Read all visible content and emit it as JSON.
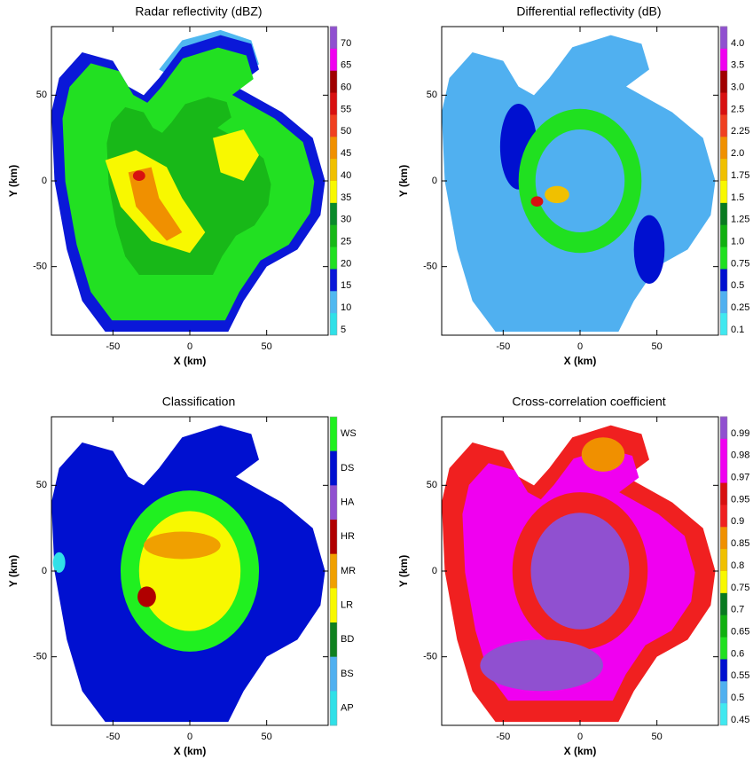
{
  "chart_data": [
    {
      "type": "heatmap",
      "title": "Radar reflectivity (dBZ)",
      "xlabel": "X (km)",
      "ylabel": "Y (km)",
      "xlim": [
        -90,
        90
      ],
      "ylim": [
        -90,
        90
      ],
      "xticks": [
        -50,
        0,
        50
      ],
      "yticks": [
        -50,
        0,
        50
      ],
      "colorbar": {
        "ticks": [
          5,
          10,
          15,
          20,
          25,
          30,
          35,
          40,
          45,
          50,
          55,
          60,
          65,
          70
        ],
        "colors": [
          "#30e0e8",
          "#50b8f0",
          "#0a18d8",
          "#22e022",
          "#18b818",
          "#0a8a2a",
          "#f8f800",
          "#f0c000",
          "#f09000",
          "#f04020",
          "#d81010",
          "#a00000",
          "#f000f0",
          "#9050d0"
        ]
      }
    },
    {
      "type": "heatmap",
      "title": "Differential reflectivity (dB)",
      "xlabel": "X (km)",
      "ylabel": "Y (km)",
      "xlim": [
        -90,
        90
      ],
      "ylim": [
        -90,
        90
      ],
      "xticks": [
        -50,
        0,
        50
      ],
      "yticks": [
        -50,
        0,
        50
      ],
      "colorbar": {
        "ticks": [
          0.1,
          0.25,
          0.5,
          0.75,
          {
            "value": 1,
            "label": "1.0"
          },
          1.25,
          1.5,
          1.75,
          {
            "value": 2,
            "label": "2.0"
          },
          2.25,
          2.5,
          {
            "value": 3,
            "label": "3.0"
          },
          3.5,
          {
            "value": 4,
            "label": "4.0"
          }
        ],
        "colors": [
          "#40e8f0",
          "#50b0f0",
          "#0010d0",
          "#20e020",
          "#10b010",
          "#087a20",
          "#f8f800",
          "#f0c000",
          "#f09000",
          "#f04020",
          "#d81010",
          "#a00000",
          "#f000f0",
          "#9050d0"
        ]
      }
    },
    {
      "type": "heatmap",
      "title": "Classification",
      "xlabel": "X (km)",
      "ylabel": "Y (km)",
      "xlim": [
        -90,
        90
      ],
      "ylim": [
        -90,
        90
      ],
      "xticks": [
        -50,
        0,
        50
      ],
      "yticks": [
        -50,
        0,
        50
      ],
      "colorbar": {
        "categories": [
          "WS",
          "DS",
          "HA",
          "HR",
          "MR",
          "LR",
          "BD",
          "BS",
          "AP"
        ],
        "colors": [
          "#20f020",
          "#0010d0",
          "#9050d0",
          "#b00000",
          "#f0a000",
          "#f8f800",
          "#108020",
          "#50b0f0",
          "#30e0e8"
        ]
      }
    },
    {
      "type": "heatmap",
      "title": "Cross-correlation coefficient",
      "xlabel": "X (km)",
      "ylabel": "Y (km)",
      "xlim": [
        -90,
        90
      ],
      "ylim": [
        -90,
        90
      ],
      "xticks": [
        -50,
        0,
        50
      ],
      "yticks": [
        -50,
        0,
        50
      ],
      "colorbar": {
        "ticks": [
          0.45,
          0.5,
          0.55,
          0.6,
          0.65,
          0.7,
          0.75,
          0.8,
          0.85,
          0.9,
          0.95,
          0.97,
          0.98,
          0.99
        ],
        "colors": [
          "#40e8f0",
          "#50b0f0",
          "#0010d0",
          "#20e020",
          "#10b010",
          "#087a20",
          "#f8f800",
          "#f0c000",
          "#f09000",
          "#f02020",
          "#d81010",
          "#f000f0",
          "#f000f0",
          "#9050d0"
        ]
      }
    }
  ]
}
